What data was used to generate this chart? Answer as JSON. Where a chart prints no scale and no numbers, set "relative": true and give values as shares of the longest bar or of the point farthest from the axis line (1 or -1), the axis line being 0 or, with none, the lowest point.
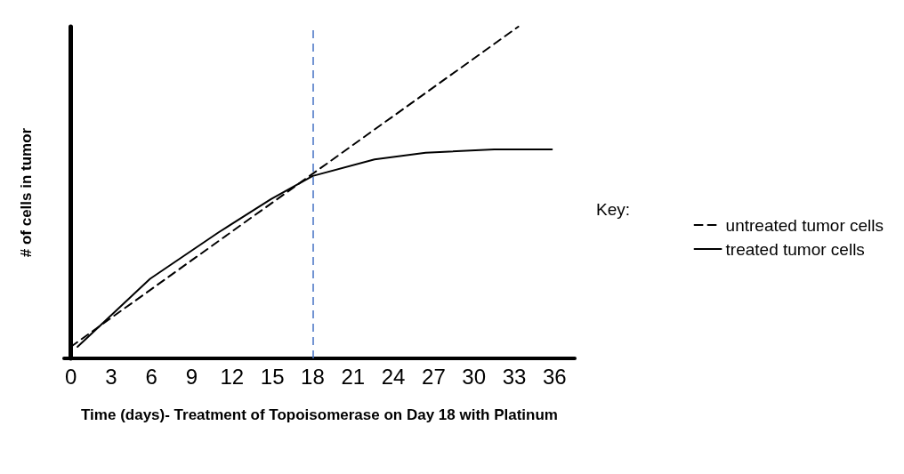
{
  "chart_data": {
    "type": "line",
    "xlabel": "Time (days)- Treatment of Topoisomerase on Day 18 with Platinum",
    "ylabel": "# of cells in tumor",
    "legend_title": "Key:",
    "relative": true,
    "xlim": [
      -0.5,
      37.5
    ],
    "xticks": [
      0,
      3,
      6,
      9,
      12,
      15,
      18,
      21,
      24,
      27,
      30,
      33,
      36
    ],
    "grid": false,
    "legend": "right",
    "marker": "none",
    "series": [
      {
        "name": "untreated tumor cells",
        "color": "#000000",
        "line_style": "dashed",
        "x": [
          0,
          33.3
        ],
        "values": [
          0.035,
          1.0
        ]
      },
      {
        "name": "treated tumor cells",
        "color": "#000000",
        "line_style": "solid",
        "x": [
          0.5,
          5.9,
          11,
          14.9,
          18,
          22.6,
          26.4,
          31.5,
          35.8
        ],
        "values": [
          0.035,
          0.24,
          0.38,
          0.48,
          0.55,
          0.6,
          0.62,
          0.63,
          0.63
        ]
      }
    ],
    "ref_lines": [
      {
        "axis": "x",
        "value": 18,
        "color": "#4472c4",
        "line_style": "dashed"
      }
    ]
  }
}
